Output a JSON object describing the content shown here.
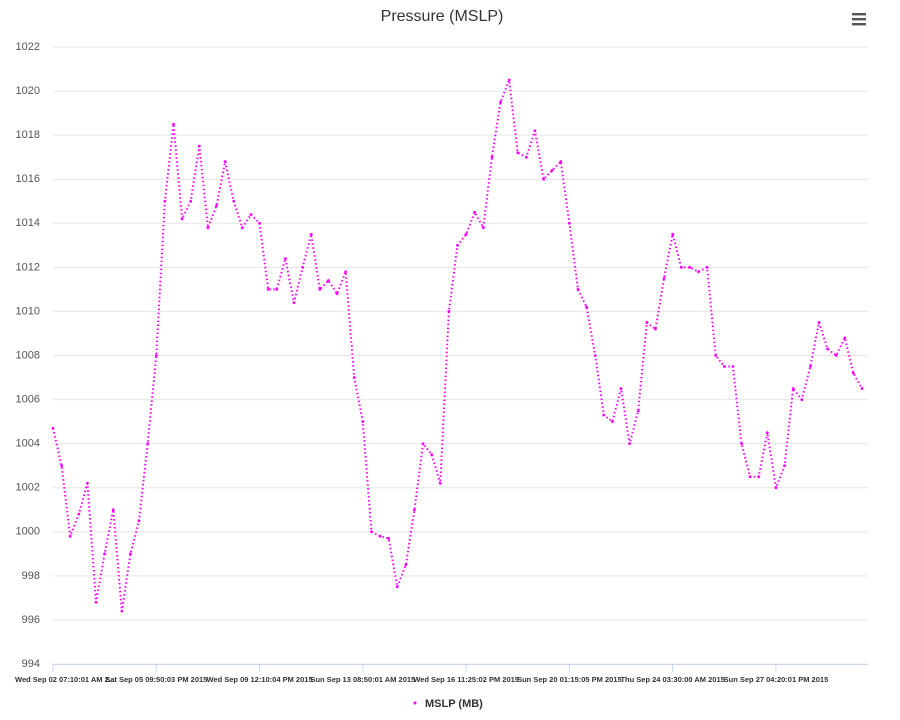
{
  "chart_data": {
    "type": "line",
    "title": "Pressure (MSLP)",
    "categories": [
      "Wed Sep 02 07:10:01 AM 2...",
      null,
      null,
      null,
      null,
      null,
      null,
      null,
      null,
      null,
      null,
      null,
      "Sat Sep 05 09:50:03 PM 2015",
      null,
      null,
      null,
      null,
      null,
      null,
      null,
      null,
      null,
      null,
      null,
      "Wed Sep 09 12:10:04 PM 2015",
      null,
      null,
      null,
      null,
      null,
      null,
      null,
      null,
      null,
      null,
      null,
      "Sun Sep 13 08:50:01 AM 2015",
      null,
      null,
      null,
      null,
      null,
      null,
      null,
      null,
      null,
      null,
      null,
      "Wed Sep 16 11:25:02 PM 2015",
      null,
      null,
      null,
      null,
      null,
      null,
      null,
      null,
      null,
      null,
      null,
      "Sun Sep 20 01:15:05 PM 2015",
      null,
      null,
      null,
      null,
      null,
      null,
      null,
      null,
      null,
      null,
      null,
      "Thu Sep 24 03:30:00 AM 2015",
      null,
      null,
      null,
      null,
      null,
      null,
      null,
      null,
      null,
      null,
      null,
      "Sun Sep 27 04:20:01 PM 2015",
      null,
      null,
      null,
      null,
      null,
      null,
      null,
      null,
      null,
      null
    ],
    "series": [
      {
        "name": "MSLP (MB)",
        "color": "#ff00ff",
        "values": [
          1004.7,
          1003,
          999.8,
          1000.8,
          1002.2,
          996.8,
          999,
          1001,
          996.4,
          999,
          1000.5,
          1004,
          1008,
          1015,
          1018.5,
          1014.2,
          1015,
          1017.5,
          1013.8,
          1014.8,
          1016.8,
          1015,
          1013.8,
          1014.4,
          1014,
          1011,
          1011,
          1012.4,
          1010.4,
          1012,
          1013.5,
          1011,
          1011.4,
          1010.8,
          1011.8,
          1007,
          1005,
          1000,
          999.8,
          999.7,
          997.5,
          998.5,
          1001,
          1004,
          1003.5,
          1002.2,
          1010,
          1013,
          1013.5,
          1014.5,
          1013.8,
          1017,
          1019.5,
          1020.5,
          1017.2,
          1017,
          1018.2,
          1016,
          1016.4,
          1016.8,
          1014,
          1011,
          1010.2,
          1008,
          1005.3,
          1005,
          1006.5,
          1004,
          1005.5,
          1009.5,
          1009.2,
          1011.5,
          1013.5,
          1012,
          1012,
          1011.8,
          1012,
          1008,
          1007.5,
          1007.5,
          1004,
          1002.5,
          1002.5,
          1004.5,
          1002,
          1003,
          1006.5,
          1006,
          1007.5,
          1009.5,
          1008.3,
          1008,
          1008.8,
          1007.2,
          1006.5
        ]
      }
    ],
    "ylim": [
      994,
      1022
    ],
    "yticks": [
      994,
      996,
      998,
      1000,
      1002,
      1004,
      1006,
      1008,
      1010,
      1012,
      1014,
      1016,
      1018,
      1020,
      1022
    ],
    "grid": true,
    "legend": "bottom"
  }
}
